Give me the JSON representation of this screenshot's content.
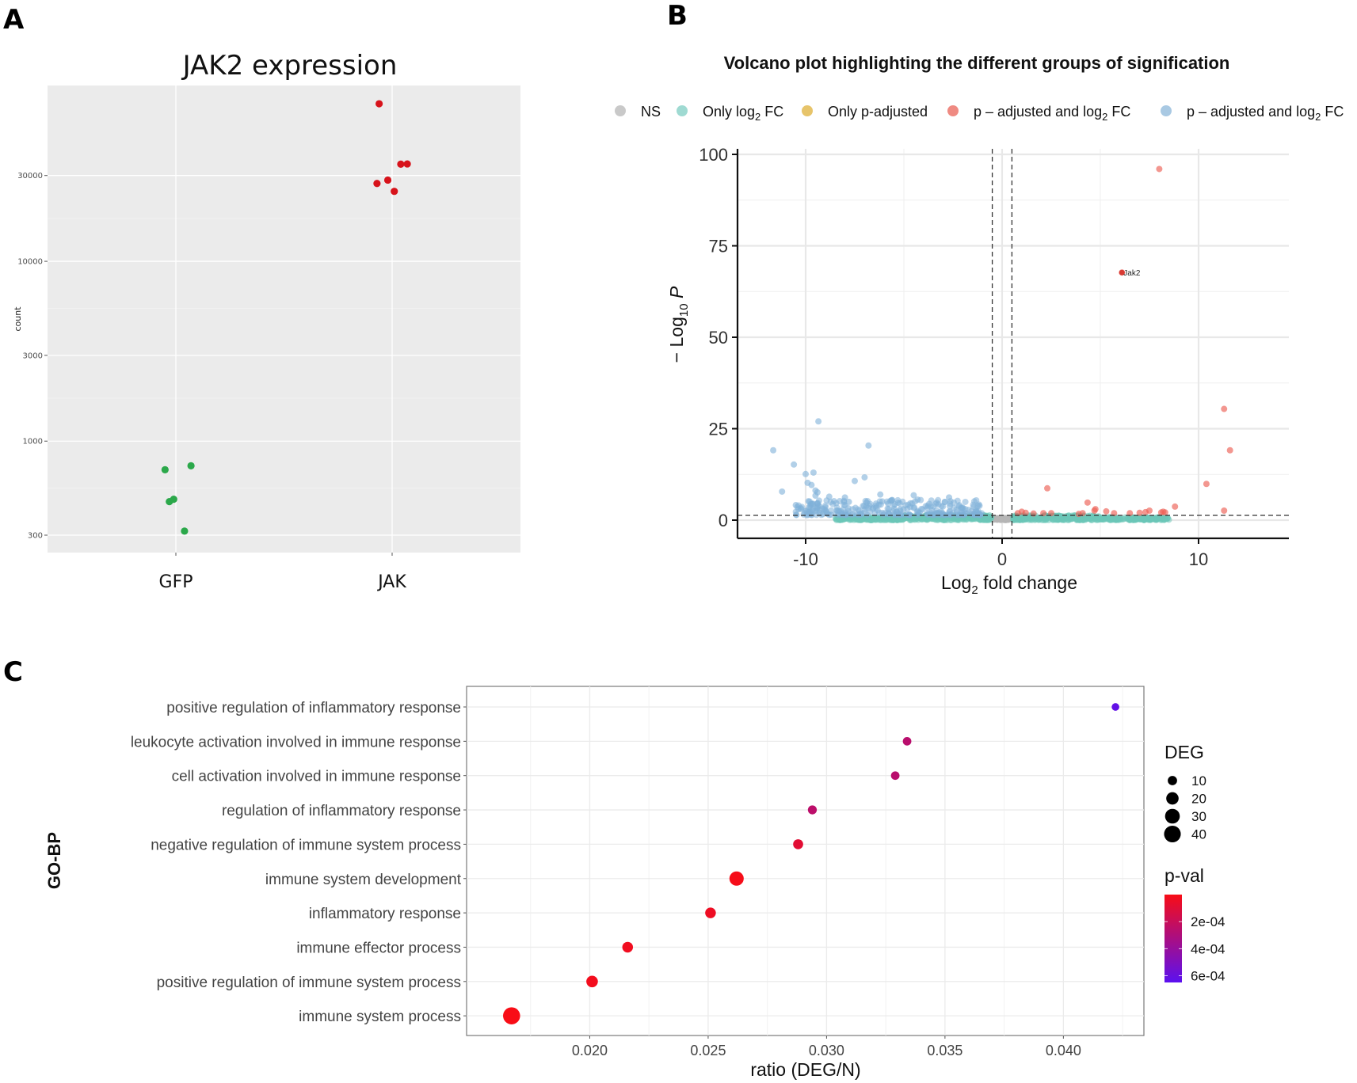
{
  "figure": {
    "panel_letters": {
      "a": "A",
      "b": "B",
      "c": "C"
    }
  },
  "chart_data": [
    {
      "id": "panelA",
      "type": "scatter",
      "title": "JAK2 expression",
      "xlabel": "",
      "ylabel": "count",
      "y_scale": "log10",
      "ylim": [
        240,
        95000
      ],
      "y_ticks": [
        300,
        1000,
        3000,
        10000,
        30000
      ],
      "y_tick_labels": [
        "300",
        "1000",
        "3000",
        "10000",
        "30000"
      ],
      "categories": [
        "GFP",
        "JAK"
      ],
      "grid": true,
      "background": "#ebebeb",
      "series": [
        {
          "name": "GFP",
          "color": "#2ba84a",
          "points": [
            {
              "category": "GFP",
              "jitter": -0.05,
              "value": 693
            },
            {
              "category": "GFP",
              "jitter": 0.07,
              "value": 729
            },
            {
              "category": "GFP",
              "jitter": -0.03,
              "value": 461
            },
            {
              "category": "GFP",
              "jitter": -0.01,
              "value": 475
            },
            {
              "category": "GFP",
              "jitter": 0.04,
              "value": 316
            }
          ]
        },
        {
          "name": "JAK",
          "color": "#d7131b",
          "points": [
            {
              "category": "JAK",
              "jitter": -0.06,
              "value": 75200
            },
            {
              "category": "JAK",
              "jitter": 0.04,
              "value": 34700
            },
            {
              "category": "JAK",
              "jitter": 0.07,
              "value": 34800
            },
            {
              "category": "JAK",
              "jitter": -0.07,
              "value": 27100
            },
            {
              "category": "JAK",
              "jitter": -0.02,
              "value": 28300
            },
            {
              "category": "JAK",
              "jitter": 0.01,
              "value": 24500
            }
          ]
        }
      ]
    },
    {
      "id": "panelB",
      "type": "scatter",
      "title": "Volcano plot highlighting the different groups of signification",
      "xlabel": "Log2 fold change",
      "xlabel_parts": {
        "pre": "Log",
        "sub": "2",
        "post": " fold change"
      },
      "ylabel_parts": {
        "pre": "− Log",
        "sub": "10",
        "post": " P"
      },
      "xlim": [
        -14,
        15
      ],
      "ylim": [
        -4,
        101
      ],
      "x_ticks": [
        -10,
        0,
        10
      ],
      "y_ticks": [
        0,
        25,
        50,
        75,
        100
      ],
      "grid": true,
      "cutoffs": {
        "log2fc": 0.5,
        "neg_log10_p": 1.3
      },
      "legend": {
        "placement": "top",
        "items": [
          {
            "label": "NS",
            "sub": "",
            "post": "",
            "color": "#c9c9c9"
          },
          {
            "label": "Only log",
            "sub": "2",
            "post": " FC",
            "color": "#9fdad2"
          },
          {
            "label": "Only p-adjusted",
            "sub": "",
            "post": "",
            "color": "#e7c46a"
          },
          {
            "label": "p – adjusted and log",
            "sub": "2",
            "post": " FC",
            "color": "#ef8a82"
          },
          {
            "label": "p – adjusted and log",
            "sub": "2",
            "post": " FC",
            "color": "#a9c9e3"
          }
        ]
      },
      "colors": {
        "ns": "#b5b5b5",
        "fc_only": "#6cc6b8",
        "up": "#ec5f55",
        "down": "#7fb1d8"
      },
      "labeled_genes": [
        {
          "label": "Jak2",
          "x": 6.1,
          "y": 67.7
        }
      ],
      "highlight_points_up": [
        {
          "x": 8.0,
          "y": 96.0
        },
        {
          "x": 11.3,
          "y": 30.4
        },
        {
          "x": 11.6,
          "y": 19.1
        },
        {
          "x": 10.4,
          "y": 9.9
        },
        {
          "x": 11.3,
          "y": 2.6
        },
        {
          "x": 2.3,
          "y": 8.7
        },
        {
          "x": 4.35,
          "y": 4.8
        },
        {
          "x": 8.8,
          "y": 3.7
        },
        {
          "x": 6.1,
          "y": 67.7
        },
        {
          "x": 1.0,
          "y": 2.3
        },
        {
          "x": 1.2,
          "y": 2.0
        },
        {
          "x": 0.8,
          "y": 1.9
        },
        {
          "x": 1.6,
          "y": 1.8
        },
        {
          "x": 2.1,
          "y": 1.9
        },
        {
          "x": 2.5,
          "y": 1.9
        },
        {
          "x": 3.9,
          "y": 1.7
        },
        {
          "x": 4.1,
          "y": 1.9
        },
        {
          "x": 4.7,
          "y": 2.6
        },
        {
          "x": 4.75,
          "y": 3.0
        },
        {
          "x": 5.3,
          "y": 2.4
        },
        {
          "x": 5.7,
          "y": 1.9
        },
        {
          "x": 6.5,
          "y": 1.9
        },
        {
          "x": 7.0,
          "y": 2.0
        },
        {
          "x": 7.3,
          "y": 2.2
        },
        {
          "x": 7.5,
          "y": 2.6
        },
        {
          "x": 8.1,
          "y": 2.1
        },
        {
          "x": 8.2,
          "y": 2.3
        },
        {
          "x": 8.3,
          "y": 2.1
        }
      ],
      "highlight_points_down": [
        {
          "x": -11.65,
          "y": 19.1
        },
        {
          "x": -11.2,
          "y": 7.8
        },
        {
          "x": -10.6,
          "y": 15.2
        },
        {
          "x": -10.0,
          "y": 12.6
        },
        {
          "x": -9.6,
          "y": 13.0
        },
        {
          "x": -9.35,
          "y": 27.0
        },
        {
          "x": -6.8,
          "y": 20.4
        },
        {
          "x": -7.0,
          "y": 11.7
        },
        {
          "x": -7.5,
          "y": 10.7
        },
        {
          "x": -9.9,
          "y": 10.2
        },
        {
          "x": -9.7,
          "y": 9.6
        },
        {
          "x": -9.5,
          "y": 8.1
        },
        {
          "x": -9.4,
          "y": 7.6
        },
        {
          "x": -9.5,
          "y": 6.7
        },
        {
          "x": -8.8,
          "y": 6.4
        },
        {
          "x": -6.2,
          "y": 7.0
        },
        {
          "x": -4.5,
          "y": 6.8
        },
        {
          "x": -4.3,
          "y": 5.6
        },
        {
          "x": -2.7,
          "y": 6.2
        },
        {
          "x": -10.5,
          "y": 4.1
        },
        {
          "x": -9.8,
          "y": 5.1
        },
        {
          "x": -8.0,
          "y": 6.2
        },
        {
          "x": -7.8,
          "y": 5.0
        },
        {
          "x": -6.9,
          "y": 4.8
        },
        {
          "x": -5.8,
          "y": 4.5
        },
        {
          "x": -3.8,
          "y": 3.4
        },
        {
          "x": -2.2,
          "y": 3.8
        },
        {
          "x": -2.0,
          "y": 3.2
        },
        {
          "x": -1.3,
          "y": 2.4
        }
      ],
      "bulk": {
        "down_region": {
          "x": [
            -10.5,
            -1.0
          ],
          "y": [
            1.4,
            5.5
          ],
          "count": 260
        },
        "fc_only_region": {
          "x": [
            -8.5,
            8.5
          ],
          "y": [
            0.0,
            1.3
          ],
          "count": 900
        },
        "ns_region": {
          "x": [
            -0.5,
            0.5
          ],
          "y": [
            0.0,
            1.3
          ],
          "count": 60
        }
      }
    },
    {
      "id": "panelC",
      "type": "scatter",
      "title": "",
      "xlabel": "ratio (DEG/N)",
      "ylabel": "GO-BP",
      "xlim": [
        0.0148,
        0.0434
      ],
      "x_ticks": [
        0.02,
        0.025,
        0.03,
        0.035,
        0.04
      ],
      "x_tick_labels": [
        "0.020",
        "0.025",
        "0.030",
        "0.035",
        "0.040"
      ],
      "grid": true,
      "categories": [
        "positive regulation of inflammatory response",
        "leukocyte activation involved in immune response",
        "cell activation involved in immune response",
        "regulation of inflammatory response",
        "negative regulation of immune system process",
        "immune system development",
        "inflammatory response",
        "immune effector process",
        "positive regulation of immune system process",
        "immune system process"
      ],
      "points": [
        {
          "term": "positive regulation of inflammatory response",
          "ratio": 0.0422,
          "deg": 6,
          "pval": 0.00062
        },
        {
          "term": "leukocyte activation involved in immune response",
          "ratio": 0.0334,
          "deg": 8,
          "pval": 0.00026
        },
        {
          "term": "cell activation involved in immune response",
          "ratio": 0.0329,
          "deg": 8,
          "pval": 0.00026
        },
        {
          "term": "regulation of inflammatory response",
          "ratio": 0.0294,
          "deg": 9,
          "pval": 0.00025
        },
        {
          "term": "negative regulation of immune system process",
          "ratio": 0.0288,
          "deg": 12,
          "pval": 9e-05
        },
        {
          "term": "immune system development",
          "ratio": 0.0262,
          "deg": 28,
          "pval": 1e-05
        },
        {
          "term": "inflammatory response",
          "ratio": 0.0251,
          "deg": 14,
          "pval": 4e-05
        },
        {
          "term": "immune effector process",
          "ratio": 0.0216,
          "deg": 14,
          "pval": 3e-05
        },
        {
          "term": "positive regulation of immune system process",
          "ratio": 0.0201,
          "deg": 17,
          "pval": 2e-05
        },
        {
          "term": "immune system process",
          "ratio": 0.0167,
          "deg": 42,
          "pval": 1e-06
        }
      ],
      "legend": {
        "placement": "right",
        "size_title": "DEG",
        "size_values": [
          10,
          20,
          30,
          40
        ],
        "size_labels": [
          "10",
          "20",
          "30",
          "40"
        ],
        "color_title": "p-val",
        "color_ticks": [
          0.0002,
          0.0004,
          0.0006
        ],
        "color_tick_labels": [
          "2e-04",
          "4e-04",
          "6e-04"
        ],
        "color_range": [
          0,
          0.00065
        ],
        "color_low": "#f80d16",
        "color_high": "#5b10f0"
      }
    }
  ]
}
